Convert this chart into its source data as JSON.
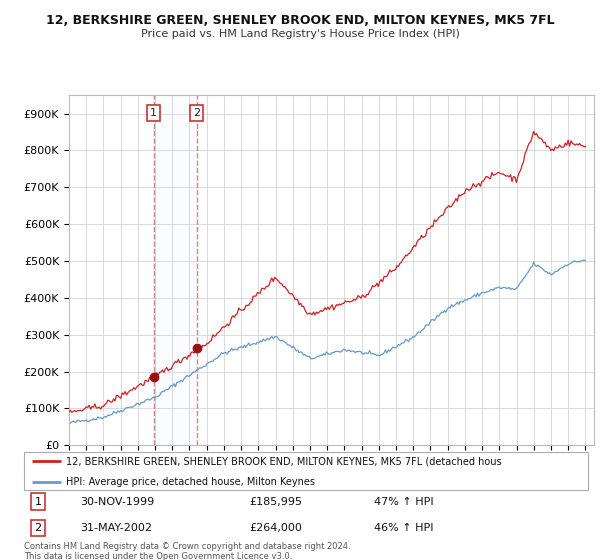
{
  "title": "12, BERKSHIRE GREEN, SHENLEY BROOK END, MILTON KEYNES, MK5 7FL",
  "subtitle": "Price paid vs. HM Land Registry's House Price Index (HPI)",
  "ylim": [
    0,
    950000
  ],
  "yticks": [
    0,
    100000,
    200000,
    300000,
    400000,
    500000,
    600000,
    700000,
    800000,
    900000
  ],
  "ytick_labels": [
    "£0",
    "£100K",
    "£200K",
    "£300K",
    "£400K",
    "£500K",
    "£600K",
    "£700K",
    "£800K",
    "£900K"
  ],
  "hpi_color": "#6699cc",
  "price_color": "#cc2222",
  "vline_color": "#cc8888",
  "purchase1_date": 1999.92,
  "purchase1_price": 185995,
  "purchase2_date": 2002.42,
  "purchase2_price": 264000,
  "legend_price_label": "12, BERKSHIRE GREEN, SHENLEY BROOK END, MILTON KEYNES, MK5 7FL (detached hous",
  "legend_hpi_label": "HPI: Average price, detached house, Milton Keynes",
  "table_rows": [
    {
      "num": "1",
      "date": "30-NOV-1999",
      "price": "£185,995",
      "change": "47% ↑ HPI"
    },
    {
      "num": "2",
      "date": "31-MAY-2002",
      "price": "£264,000",
      "change": "46% ↑ HPI"
    }
  ],
  "footer": "Contains HM Land Registry data © Crown copyright and database right 2024.\nThis data is licensed under the Open Government Licence v3.0.",
  "grid_color": "#cccccc",
  "span_color": "#ddeeff",
  "box_ec": "#cc3333"
}
